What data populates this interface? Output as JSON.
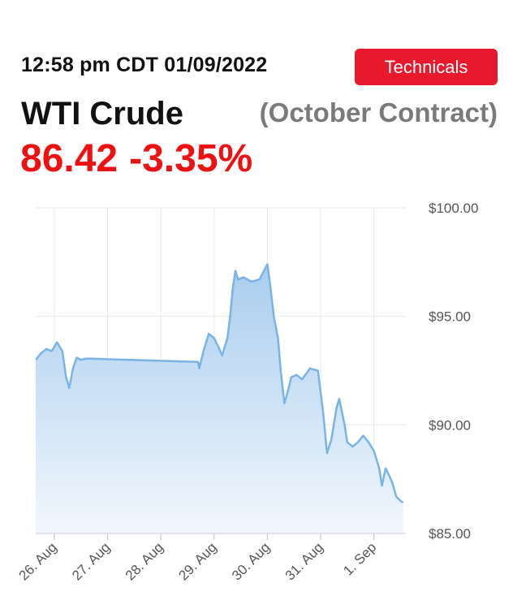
{
  "header": {
    "timestamp": "12:58 pm CDT 01/09/2022",
    "technicals_label": "Technicals",
    "title": "WTI Crude",
    "contract": "(October Contract)",
    "price": "86.42",
    "change": "-3.35%"
  },
  "colors": {
    "accent": "#e8192c",
    "price": "#ee1111",
    "line": "#7ab3e6",
    "fill_top": "#a9cdee",
    "fill_bottom": "#f2f7fd",
    "grid": "#e6e9ee"
  },
  "chart_data": {
    "type": "area",
    "title": "",
    "xlabel": "",
    "ylabel": "",
    "ylim": [
      85,
      100
    ],
    "yticks": [
      "$85.00",
      "$90.00",
      "$95.00",
      "$100.00"
    ],
    "ytick_values": [
      85,
      90,
      95,
      100
    ],
    "xticks": [
      "26. Aug",
      "27. Aug",
      "28. Aug",
      "29. Aug",
      "30. Aug",
      "31. Aug",
      "1. Sep"
    ],
    "xtick_values": [
      0,
      1,
      2,
      3,
      4,
      5,
      6
    ],
    "xlim": [
      -0.35,
      6.6
    ],
    "grid": true,
    "series": [
      {
        "x": [
          -0.35,
          -0.25,
          -0.15,
          -0.05,
          0.05,
          0.15,
          0.22,
          0.28,
          0.35,
          0.42,
          0.5,
          0.58,
          0.65,
          0.7,
          2.7,
          2.72,
          2.8,
          2.9,
          3.0,
          3.08,
          3.15,
          3.25,
          3.3,
          3.35,
          3.4,
          3.45,
          3.55,
          3.7,
          3.85,
          4.0,
          4.05,
          4.12,
          4.2,
          4.25,
          4.32,
          4.38,
          4.45,
          4.55,
          4.65,
          4.8,
          4.95,
          5.05,
          5.12,
          5.2,
          5.3,
          5.35,
          5.45,
          5.5,
          5.6,
          5.7,
          5.8,
          5.9,
          6.0,
          6.1,
          6.15,
          6.22,
          6.3,
          6.35,
          6.42,
          6.5,
          6.55
        ],
        "values": [
          93.0,
          93.3,
          93.5,
          93.4,
          93.8,
          93.4,
          92.2,
          91.7,
          92.6,
          93.1,
          93.0,
          93.05,
          93.05,
          93.05,
          92.9,
          92.6,
          93.4,
          94.2,
          94.0,
          93.6,
          93.2,
          94.0,
          95.0,
          96.3,
          97.1,
          96.7,
          96.8,
          96.6,
          96.7,
          97.4,
          96.5,
          95.0,
          94.0,
          92.5,
          91.0,
          91.5,
          92.2,
          92.3,
          92.1,
          92.6,
          92.5,
          90.5,
          88.7,
          89.3,
          90.8,
          91.2,
          90.0,
          89.2,
          89.0,
          89.2,
          89.5,
          89.2,
          88.8,
          88.0,
          87.2,
          88.0,
          87.6,
          87.3,
          86.7,
          86.5,
          86.42
        ]
      }
    ]
  }
}
